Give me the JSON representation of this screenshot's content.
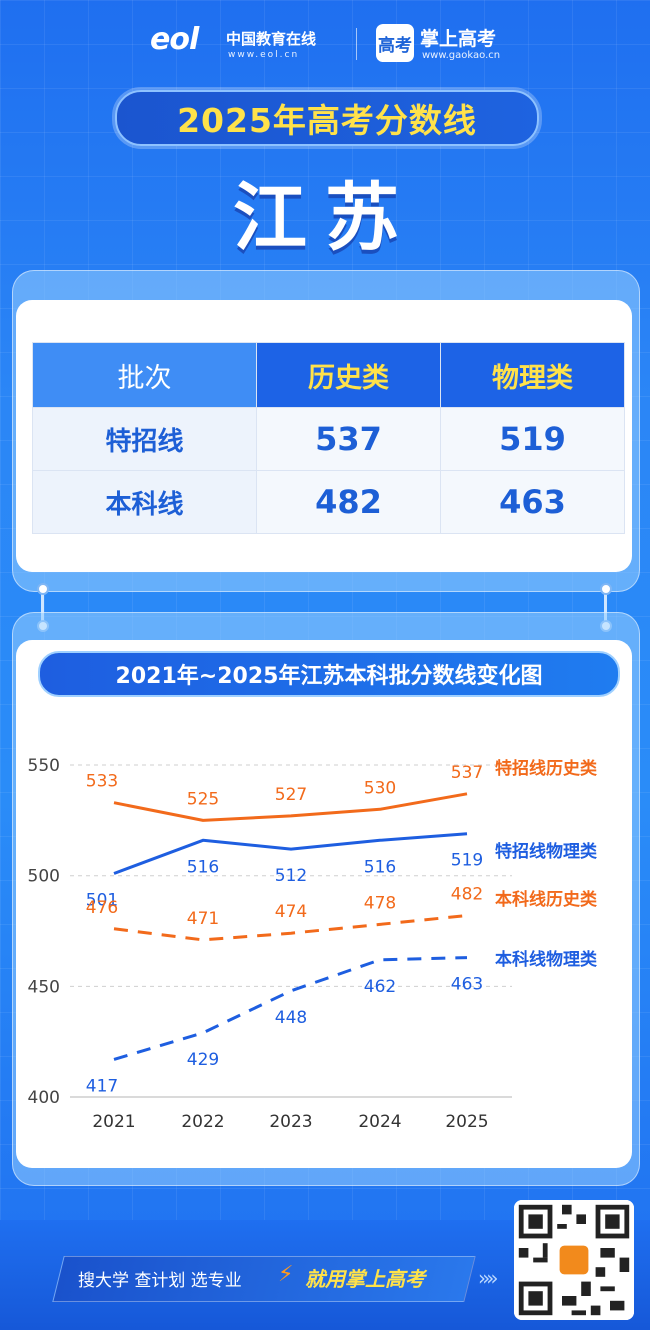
{
  "header": {
    "eol_mark": "eol",
    "eol_name": "中国教育在线",
    "eol_url": "www.eol.cn",
    "gaokao_badge": "高考",
    "gaokao_name": "掌上高考",
    "gaokao_url": "www.gaokao.cn"
  },
  "title": "2025年高考分数线",
  "province": "江苏",
  "table": {
    "headers": [
      "批次",
      "历史类",
      "物理类"
    ],
    "rows": [
      {
        "label": "特招线",
        "history": "537",
        "physics": "519"
      },
      {
        "label": "本科线",
        "history": "482",
        "physics": "463"
      }
    ]
  },
  "chart_title": "2021年~2025年江苏本科批分数线变化图",
  "chart_data": {
    "type": "line",
    "title": "2021年~2025年江苏本科批分数线变化图",
    "categories": [
      "2021",
      "2022",
      "2023",
      "2024",
      "2025"
    ],
    "yticks": [
      "400",
      "450",
      "500",
      "550"
    ],
    "ylim": [
      400,
      550
    ],
    "grid": "dashed-horizontal",
    "legend": "right-end-of-lines",
    "series": [
      {
        "name": "特招线历史类",
        "values": [
          533,
          525,
          527,
          530,
          537
        ],
        "color": "#f26a1b",
        "dash": false,
        "label_pos": "above"
      },
      {
        "name": "特招线物理类",
        "values": [
          501,
          516,
          512,
          516,
          519
        ],
        "color": "#1e5ee0",
        "dash": false,
        "label_pos": "below"
      },
      {
        "name": "本科线历史类",
        "values": [
          476,
          471,
          474,
          478,
          482
        ],
        "color": "#f26a1b",
        "dash": true,
        "label_pos": "above"
      },
      {
        "name": "本科线物理类",
        "values": [
          417,
          429,
          448,
          462,
          463
        ],
        "color": "#1e5ee0",
        "dash": true,
        "label_pos": "below"
      }
    ]
  },
  "footer": {
    "slogan": "搜大学  查计划  选专业",
    "slogan_strong": "就用掌上高考"
  }
}
